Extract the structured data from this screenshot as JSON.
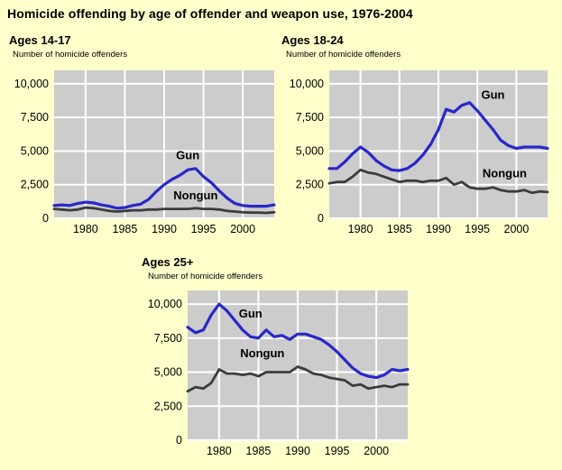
{
  "page": {
    "title": "Homicide offending by age of offender and weapon use, 1976-2004"
  },
  "colors": {
    "background": "#FFFFCC",
    "plot_bg": "#CCCCCC",
    "grid": "#FFFFFF",
    "gun": "#2828C8",
    "nongun": "#3C3C3C",
    "text": "#000000"
  },
  "chart_data": [
    {
      "type": "line",
      "title": "Ages 14-17",
      "ylabel": "Number of homicide offenders",
      "x_range": [
        1976,
        2004
      ],
      "ylim": [
        0,
        11000
      ],
      "grid": true,
      "years": [
        1976,
        1977,
        1978,
        1979,
        1980,
        1981,
        1982,
        1983,
        1984,
        1985,
        1986,
        1987,
        1988,
        1989,
        1990,
        1991,
        1992,
        1993,
        1994,
        1995,
        1996,
        1997,
        1998,
        1999,
        2000,
        2001,
        2002,
        2003,
        2004
      ],
      "yticks": {
        "values": [
          0,
          2500,
          5000,
          7500,
          10000
        ],
        "labels": [
          "0",
          "2,500",
          "5,000",
          "7,500",
          "10,000"
        ]
      },
      "xticks": {
        "values": [
          1980,
          1985,
          1990,
          1995,
          2000
        ],
        "labels": [
          "1980",
          "1985",
          "1990",
          "1995",
          "2000"
        ]
      },
      "series": [
        {
          "name": "Gun",
          "color_key": "gun",
          "values": [
            950,
            1000,
            950,
            1100,
            1200,
            1150,
            1000,
            900,
            750,
            800,
            950,
            1050,
            1400,
            2000,
            2500,
            2900,
            3200,
            3600,
            3700,
            3100,
            2650,
            2050,
            1500,
            1100,
            950,
            900,
            900,
            900,
            1000
          ],
          "label_anchor": {
            "year": 1993,
            "value": 4400
          }
        },
        {
          "name": "Nongun",
          "color_key": "nongun",
          "values": [
            700,
            650,
            600,
            650,
            800,
            750,
            650,
            550,
            500,
            550,
            600,
            600,
            650,
            650,
            700,
            700,
            700,
            700,
            750,
            700,
            700,
            650,
            550,
            500,
            450,
            430,
            420,
            400,
            450
          ],
          "label_anchor": {
            "year": 1994,
            "value": 1400
          }
        }
      ]
    },
    {
      "type": "line",
      "title": "Ages 18-24",
      "ylabel": "Number of homicide offenders",
      "x_range": [
        1976,
        2004
      ],
      "ylim": [
        0,
        11000
      ],
      "grid": true,
      "years": [
        1976,
        1977,
        1978,
        1979,
        1980,
        1981,
        1982,
        1983,
        1984,
        1985,
        1986,
        1987,
        1988,
        1989,
        1990,
        1991,
        1992,
        1993,
        1994,
        1995,
        1996,
        1997,
        1998,
        1999,
        2000,
        2001,
        2002,
        2003,
        2004
      ],
      "yticks": {
        "values": [
          0,
          2500,
          5000,
          7500,
          10000
        ],
        "labels": [
          "0",
          "2,500",
          "5,000",
          "7,500",
          "10,000"
        ]
      },
      "xticks": {
        "values": [
          1980,
          1985,
          1990,
          1995,
          2000
        ],
        "labels": [
          "1980",
          "1985",
          "1990",
          "1995",
          "2000"
        ]
      },
      "series": [
        {
          "name": "Gun",
          "color_key": "gun",
          "values": [
            3700,
            3700,
            4200,
            4800,
            5300,
            4900,
            4300,
            3900,
            3600,
            3550,
            3700,
            4100,
            4700,
            5500,
            6600,
            8100,
            7900,
            8400,
            8600,
            8000,
            7300,
            6600,
            5800,
            5400,
            5200,
            5300,
            5300,
            5300,
            5200
          ],
          "label_anchor": {
            "year": 1997,
            "value": 8900
          }
        },
        {
          "name": "Nongun",
          "color_key": "nongun",
          "values": [
            2600,
            2700,
            2700,
            3100,
            3600,
            3400,
            3300,
            3100,
            2900,
            2700,
            2800,
            2800,
            2700,
            2800,
            2800,
            3000,
            2500,
            2700,
            2300,
            2200,
            2200,
            2300,
            2100,
            2000,
            2000,
            2100,
            1900,
            2000,
            1950
          ],
          "label_anchor": {
            "year": 1998.5,
            "value": 3050
          }
        }
      ]
    },
    {
      "type": "line",
      "title": "Ages 25+",
      "ylabel": "Number of homicide offenders",
      "x_range": [
        1976,
        2004
      ],
      "ylim": [
        0,
        11000
      ],
      "grid": true,
      "years": [
        1976,
        1977,
        1978,
        1979,
        1980,
        1981,
        1982,
        1983,
        1984,
        1985,
        1986,
        1987,
        1988,
        1989,
        1990,
        1991,
        1992,
        1993,
        1994,
        1995,
        1996,
        1997,
        1998,
        1999,
        2000,
        2001,
        2002,
        2003,
        2004
      ],
      "yticks": {
        "values": [
          0,
          2500,
          5000,
          7500,
          10000
        ],
        "labels": [
          "0",
          "2,500",
          "5,000",
          "7,500",
          "10,000"
        ]
      },
      "xticks": {
        "values": [
          1980,
          1985,
          1990,
          1995,
          2000
        ],
        "labels": [
          "1980",
          "1985",
          "1990",
          "1995",
          "2000"
        ]
      },
      "series": [
        {
          "name": "Gun",
          "color_key": "gun",
          "values": [
            8300,
            7900,
            8100,
            9200,
            10000,
            9500,
            8800,
            8100,
            7600,
            7500,
            8100,
            7600,
            7700,
            7400,
            7800,
            7800,
            7600,
            7400,
            7000,
            6500,
            5900,
            5300,
            4900,
            4700,
            4600,
            4800,
            5200,
            5100,
            5200
          ],
          "label_anchor": {
            "year": 1984,
            "value": 9000
          }
        },
        {
          "name": "Nongun",
          "color_key": "nongun",
          "values": [
            3600,
            3900,
            3800,
            4200,
            5200,
            4900,
            4900,
            4800,
            4900,
            4700,
            5000,
            5000,
            5000,
            5000,
            5400,
            5200,
            4900,
            4800,
            4600,
            4500,
            4400,
            4000,
            4100,
            3800,
            3900,
            4000,
            3900,
            4100,
            4100
          ],
          "label_anchor": {
            "year": 1985.5,
            "value": 6100
          }
        }
      ]
    }
  ]
}
